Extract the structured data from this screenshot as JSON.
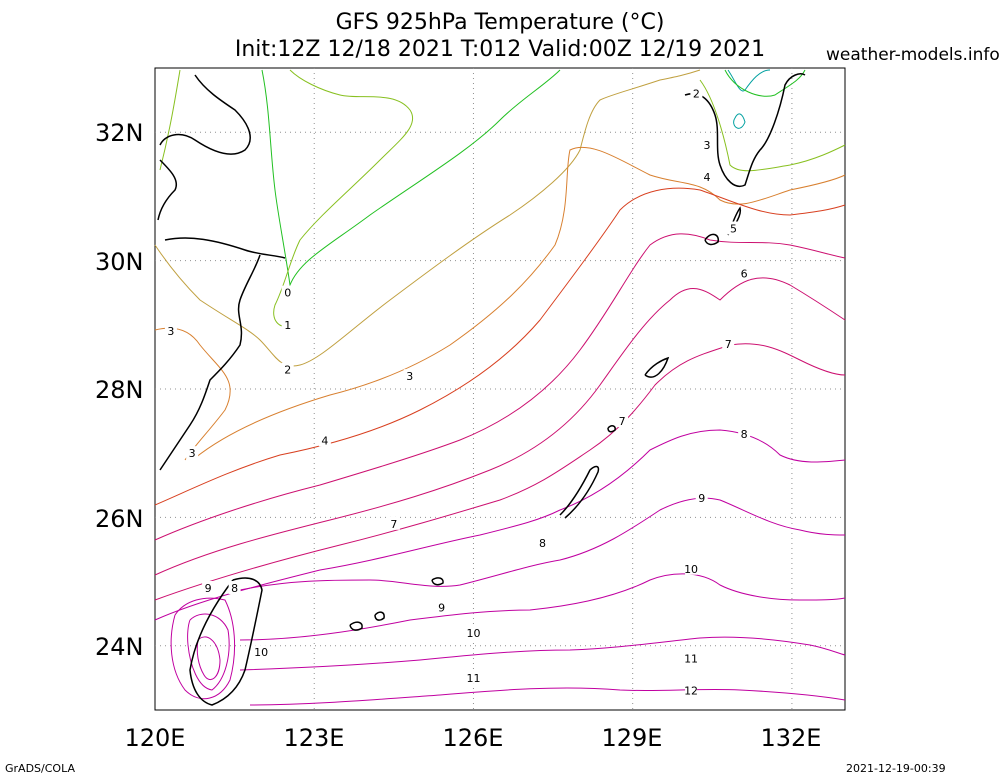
{
  "title": {
    "line1": "GFS 925hPa Temperature (°C)",
    "line2": "Init:12Z 12/18 2021 T:012 Valid:00Z 12/19 2021"
  },
  "site": "weather-models.info",
  "footer": {
    "left": "GrADS/COLA",
    "right": "2021-12-19-00:39"
  },
  "map": {
    "lon_range": [
      120,
      133
    ],
    "lat_range": [
      23,
      33
    ],
    "lat_labels": [
      "32N",
      "30N",
      "28N",
      "26N",
      "24N"
    ],
    "lon_labels": [
      "120E",
      "123E",
      "126E",
      "129E",
      "132E"
    ],
    "grid": "dotted",
    "variable": "925hPa Temperature",
    "units": "°C",
    "contour_interval": 1,
    "contour_labels": [
      {
        "value": "0",
        "lon": 122.5,
        "lat": 29.5
      },
      {
        "value": "1",
        "lon": 122.5,
        "lat": 29.0
      },
      {
        "value": "2",
        "lon": 122.5,
        "lat": 28.3
      },
      {
        "value": "2",
        "lon": 130.2,
        "lat": 32.6
      },
      {
        "value": "3",
        "lon": 120.3,
        "lat": 28.9
      },
      {
        "value": "3",
        "lon": 124.8,
        "lat": 28.2
      },
      {
        "value": "3",
        "lon": 120.7,
        "lat": 27.0
      },
      {
        "value": "3",
        "lon": 130.4,
        "lat": 31.8
      },
      {
        "value": "4",
        "lon": 123.2,
        "lat": 27.2
      },
      {
        "value": "4",
        "lon": 130.4,
        "lat": 31.3
      },
      {
        "value": "5",
        "lon": 130.9,
        "lat": 30.5
      },
      {
        "value": "6",
        "lon": 131.1,
        "lat": 29.8
      },
      {
        "value": "7",
        "lon": 124.5,
        "lat": 25.9
      },
      {
        "value": "7",
        "lon": 128.8,
        "lat": 27.5
      },
      {
        "value": "7",
        "lon": 130.8,
        "lat": 28.7
      },
      {
        "value": "8",
        "lon": 121.5,
        "lat": 24.9
      },
      {
        "value": "8",
        "lon": 127.3,
        "lat": 25.6
      },
      {
        "value": "8",
        "lon": 131.1,
        "lat": 27.3
      },
      {
        "value": "9",
        "lon": 121.0,
        "lat": 24.9
      },
      {
        "value": "9",
        "lon": 125.4,
        "lat": 24.6
      },
      {
        "value": "9",
        "lon": 130.3,
        "lat": 26.3
      },
      {
        "value": "10",
        "lon": 122.0,
        "lat": 23.9
      },
      {
        "value": "10",
        "lon": 126.0,
        "lat": 24.2
      },
      {
        "value": "10",
        "lon": 130.1,
        "lat": 25.2
      },
      {
        "value": "11",
        "lon": 126.0,
        "lat": 23.5
      },
      {
        "value": "11",
        "lon": 130.1,
        "lat": 23.8
      },
      {
        "value": "12",
        "lon": 130.1,
        "lat": 23.3
      }
    ],
    "colors": {
      "cold": "#00a0a0",
      "zero": "#22c022",
      "one": "#88c020",
      "two": "#c0a040",
      "three": "#d88030",
      "four": "#d84020",
      "five_plus": "#cc1070",
      "warm": "#c000a0",
      "coast": "#000000",
      "grid": "#909090"
    }
  }
}
